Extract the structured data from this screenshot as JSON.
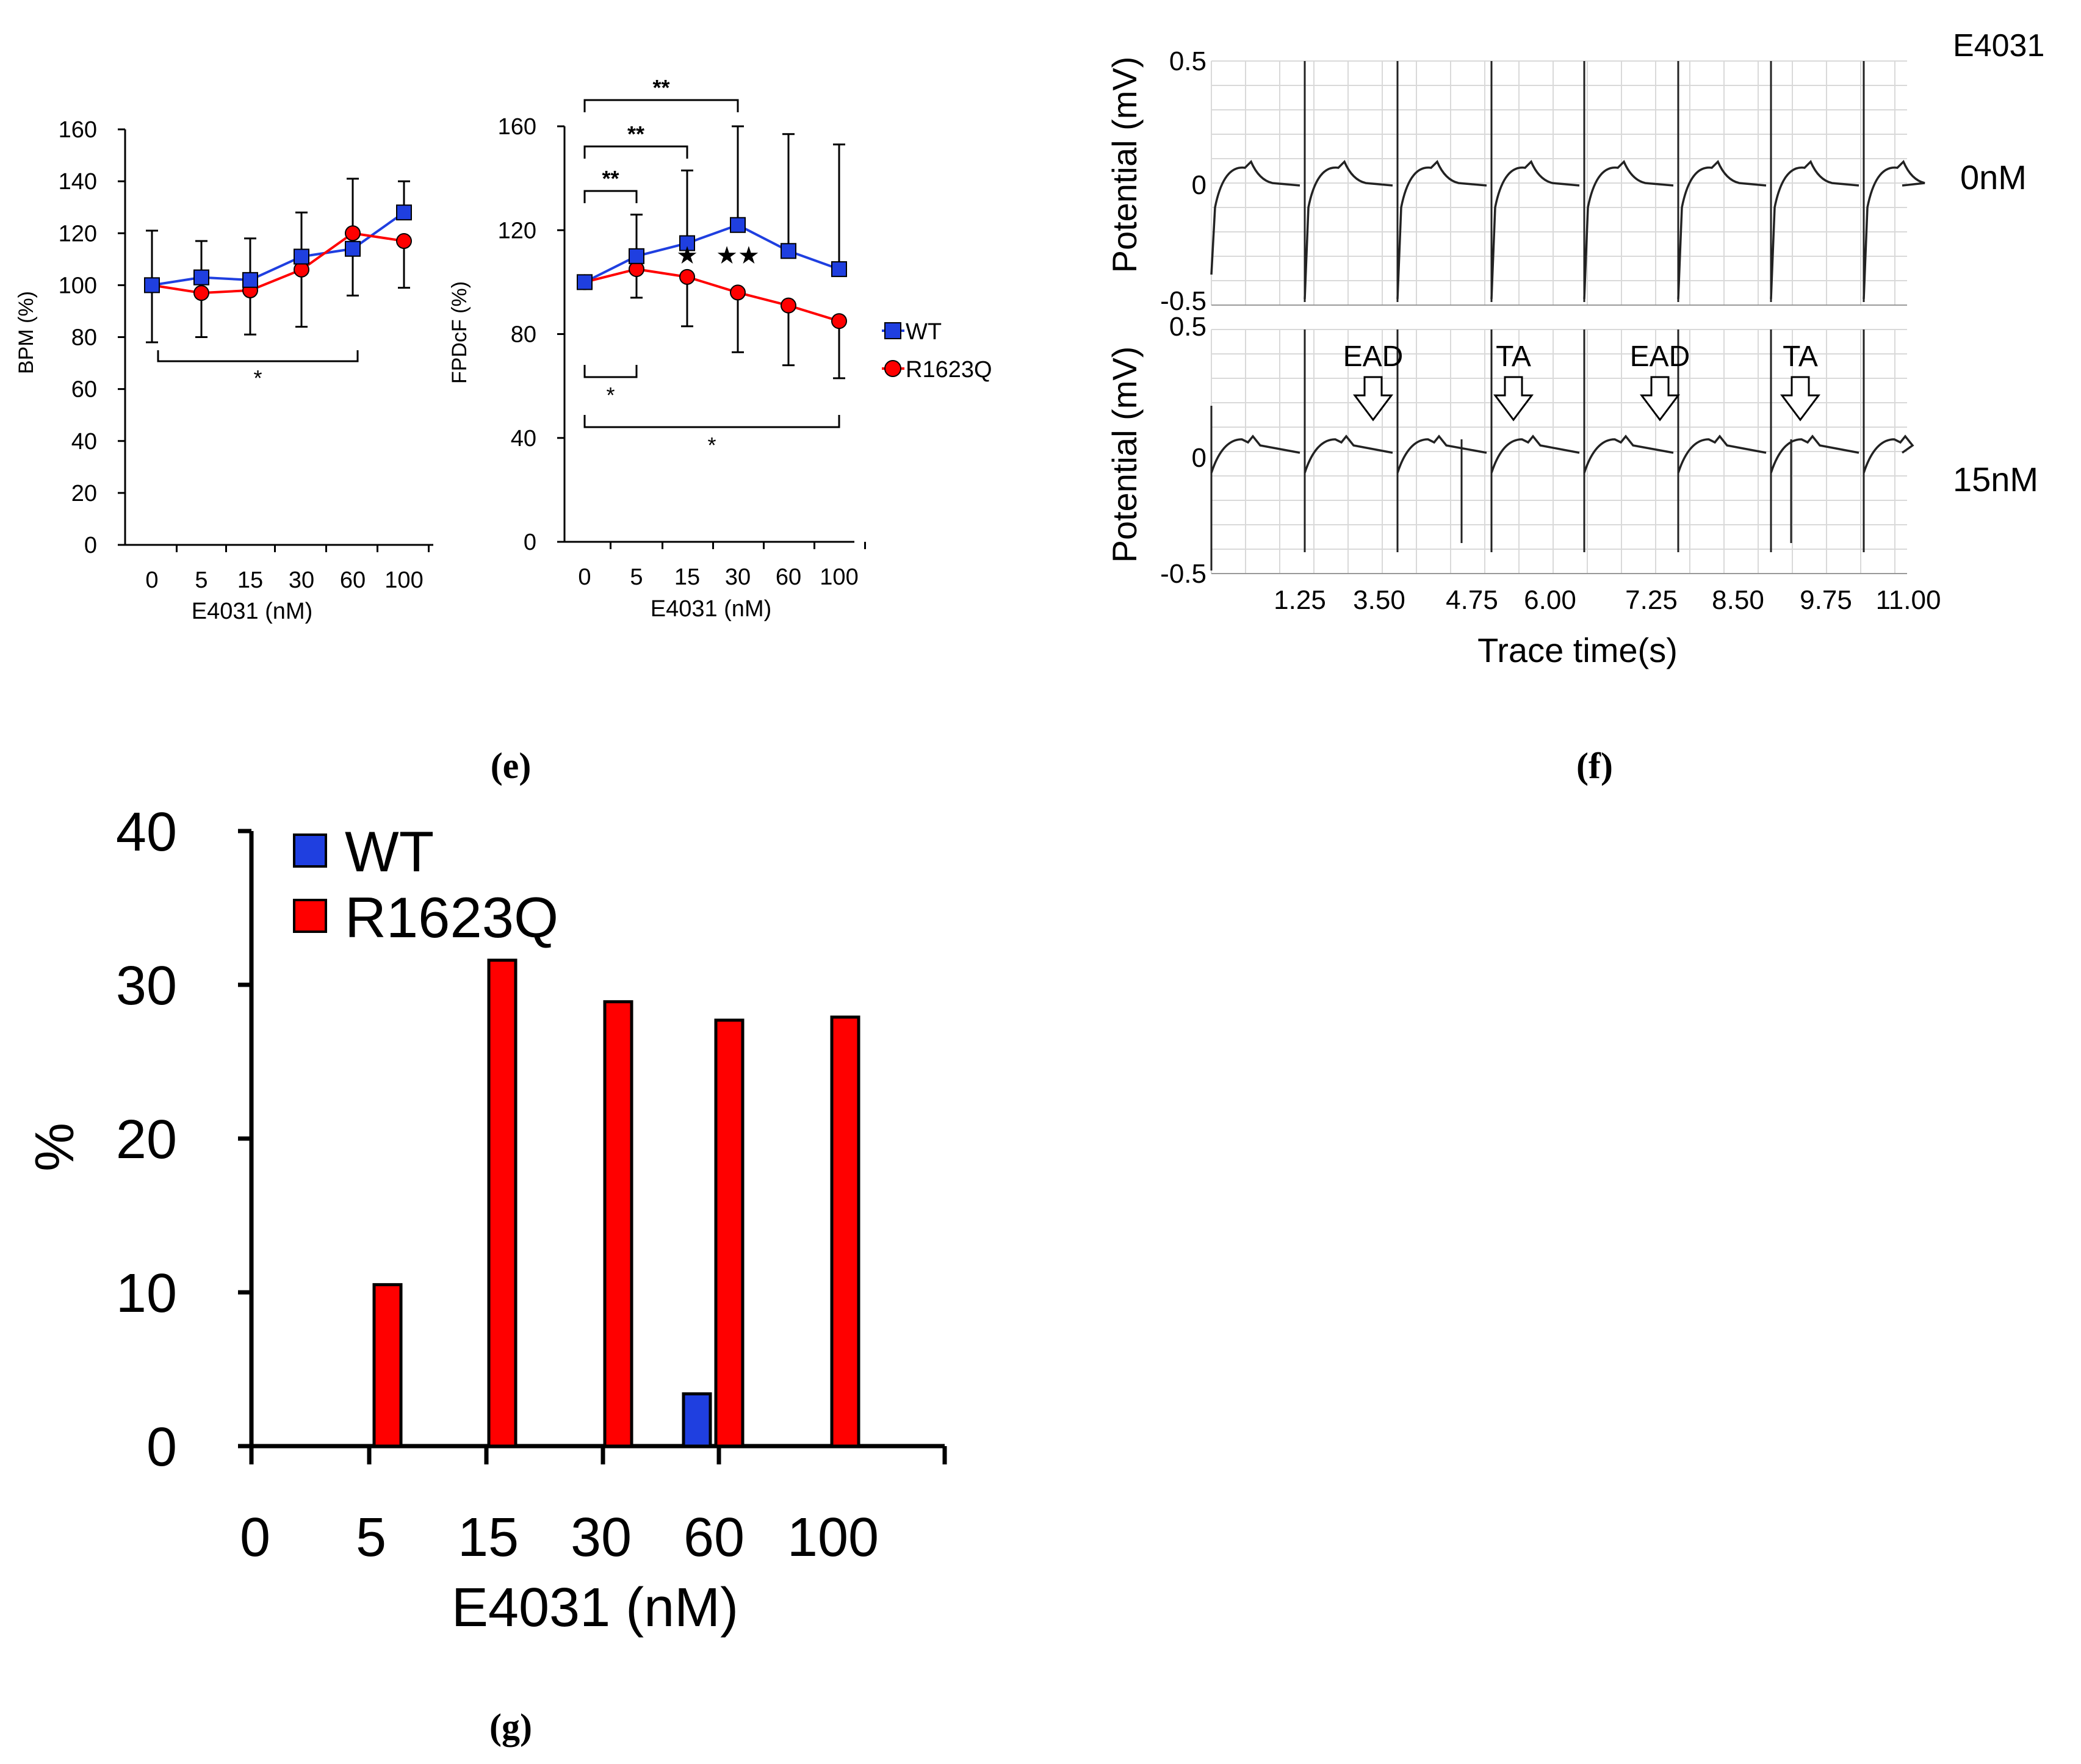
{
  "colors": {
    "wt": "#1f3fe0",
    "r1623q": "#ff0000",
    "axis": "#000000",
    "trace": "#222222",
    "grid": "#d9d9d9"
  },
  "panel_labels": {
    "e": "(e)",
    "f": "(f)",
    "g": "(g)"
  },
  "chart_data": [
    {
      "id": "bpm",
      "type": "line",
      "title": "",
      "xlabel": "E4031 (nM)",
      "ylabel": "BPM (%)",
      "categories": [
        "0",
        "5",
        "15",
        "30",
        "60",
        "100"
      ],
      "ylim": [
        0,
        160
      ],
      "yticks": [
        "0",
        "20",
        "40",
        "60",
        "80",
        "100",
        "120",
        "140",
        "160"
      ],
      "series": [
        {
          "name": "WT",
          "values": [
            100,
            103,
            102,
            111,
            114,
            128
          ],
          "err": [
            21,
            14,
            16,
            17,
            27,
            12
          ]
        },
        {
          "name": "R1623Q",
          "values": [
            100,
            97,
            98,
            106,
            120,
            117
          ],
          "err": [
            22,
            17,
            17,
            22,
            24,
            18
          ]
        }
      ],
      "brackets": [
        {
          "from": 0,
          "to": 4,
          "label": "*"
        }
      ]
    },
    {
      "id": "fpdcf",
      "type": "line",
      "title": "",
      "xlabel": "E4031 (nM)",
      "ylabel": "FPDcF (%)",
      "categories": [
        "0",
        "5",
        "15",
        "30",
        "60",
        "100"
      ],
      "ylim": [
        0,
        160
      ],
      "yticks": [
        "0",
        "40",
        "80",
        "120",
        "160"
      ],
      "legend": [
        "WT",
        "R1623Q"
      ],
      "series": [
        {
          "name": "WT",
          "values": [
            100,
            110,
            115,
            122,
            112,
            105
          ],
          "err": [
            0,
            16,
            28,
            38,
            45,
            48
          ]
        },
        {
          "name": "R1623Q",
          "values": [
            100,
            105,
            102,
            96,
            91,
            85
          ],
          "err": [
            0,
            11,
            19,
            23,
            23,
            22
          ]
        }
      ],
      "brackets_top": [
        {
          "from": 0,
          "to": 1,
          "label": "**"
        },
        {
          "from": 0,
          "to": 2,
          "label": "**"
        },
        {
          "from": 0,
          "to": 3,
          "label": "**"
        }
      ],
      "brackets_bottom": [
        {
          "from": 0,
          "to": 1,
          "label": "*"
        },
        {
          "from": 0,
          "to": 5,
          "label": "*"
        }
      ],
      "stars": [
        {
          "index": 2,
          "label": "★"
        },
        {
          "index": 3,
          "label": "★★"
        }
      ]
    },
    {
      "id": "traces",
      "type": "line",
      "title": "E4031",
      "xlabel": "Trace time(s)",
      "ylabel": "Potential (mV)",
      "xticks": [
        "1.25",
        "3.50",
        "4.75",
        "6.00",
        "7.25",
        "8.50",
        "9.75",
        "11.00"
      ],
      "panels": [
        {
          "label": "0nM",
          "yticks": [
            "0.5",
            "0",
            "-0.5"
          ]
        },
        {
          "label": "15nM",
          "yticks": [
            "0.5",
            "0",
            "-0.5"
          ]
        }
      ],
      "annotations": [
        "EAD",
        "TA",
        "EAD",
        "TA"
      ]
    },
    {
      "id": "incidence",
      "type": "bar",
      "title": "",
      "xlabel": "E4031 (nM)",
      "ylabel": "%",
      "categories": [
        "0",
        "5",
        "15",
        "30",
        "60",
        "100"
      ],
      "ylim": [
        0,
        40
      ],
      "yticks": [
        "0",
        "10",
        "20",
        "30",
        "40"
      ],
      "legend": [
        "WT",
        "R1623Q"
      ],
      "series": [
        {
          "name": "WT",
          "values": [
            0,
            0,
            0,
            0,
            3.4,
            0
          ]
        },
        {
          "name": "R1623Q",
          "values": [
            0,
            10.5,
            31.6,
            28.9,
            27.7,
            27.9
          ]
        }
      ]
    }
  ]
}
